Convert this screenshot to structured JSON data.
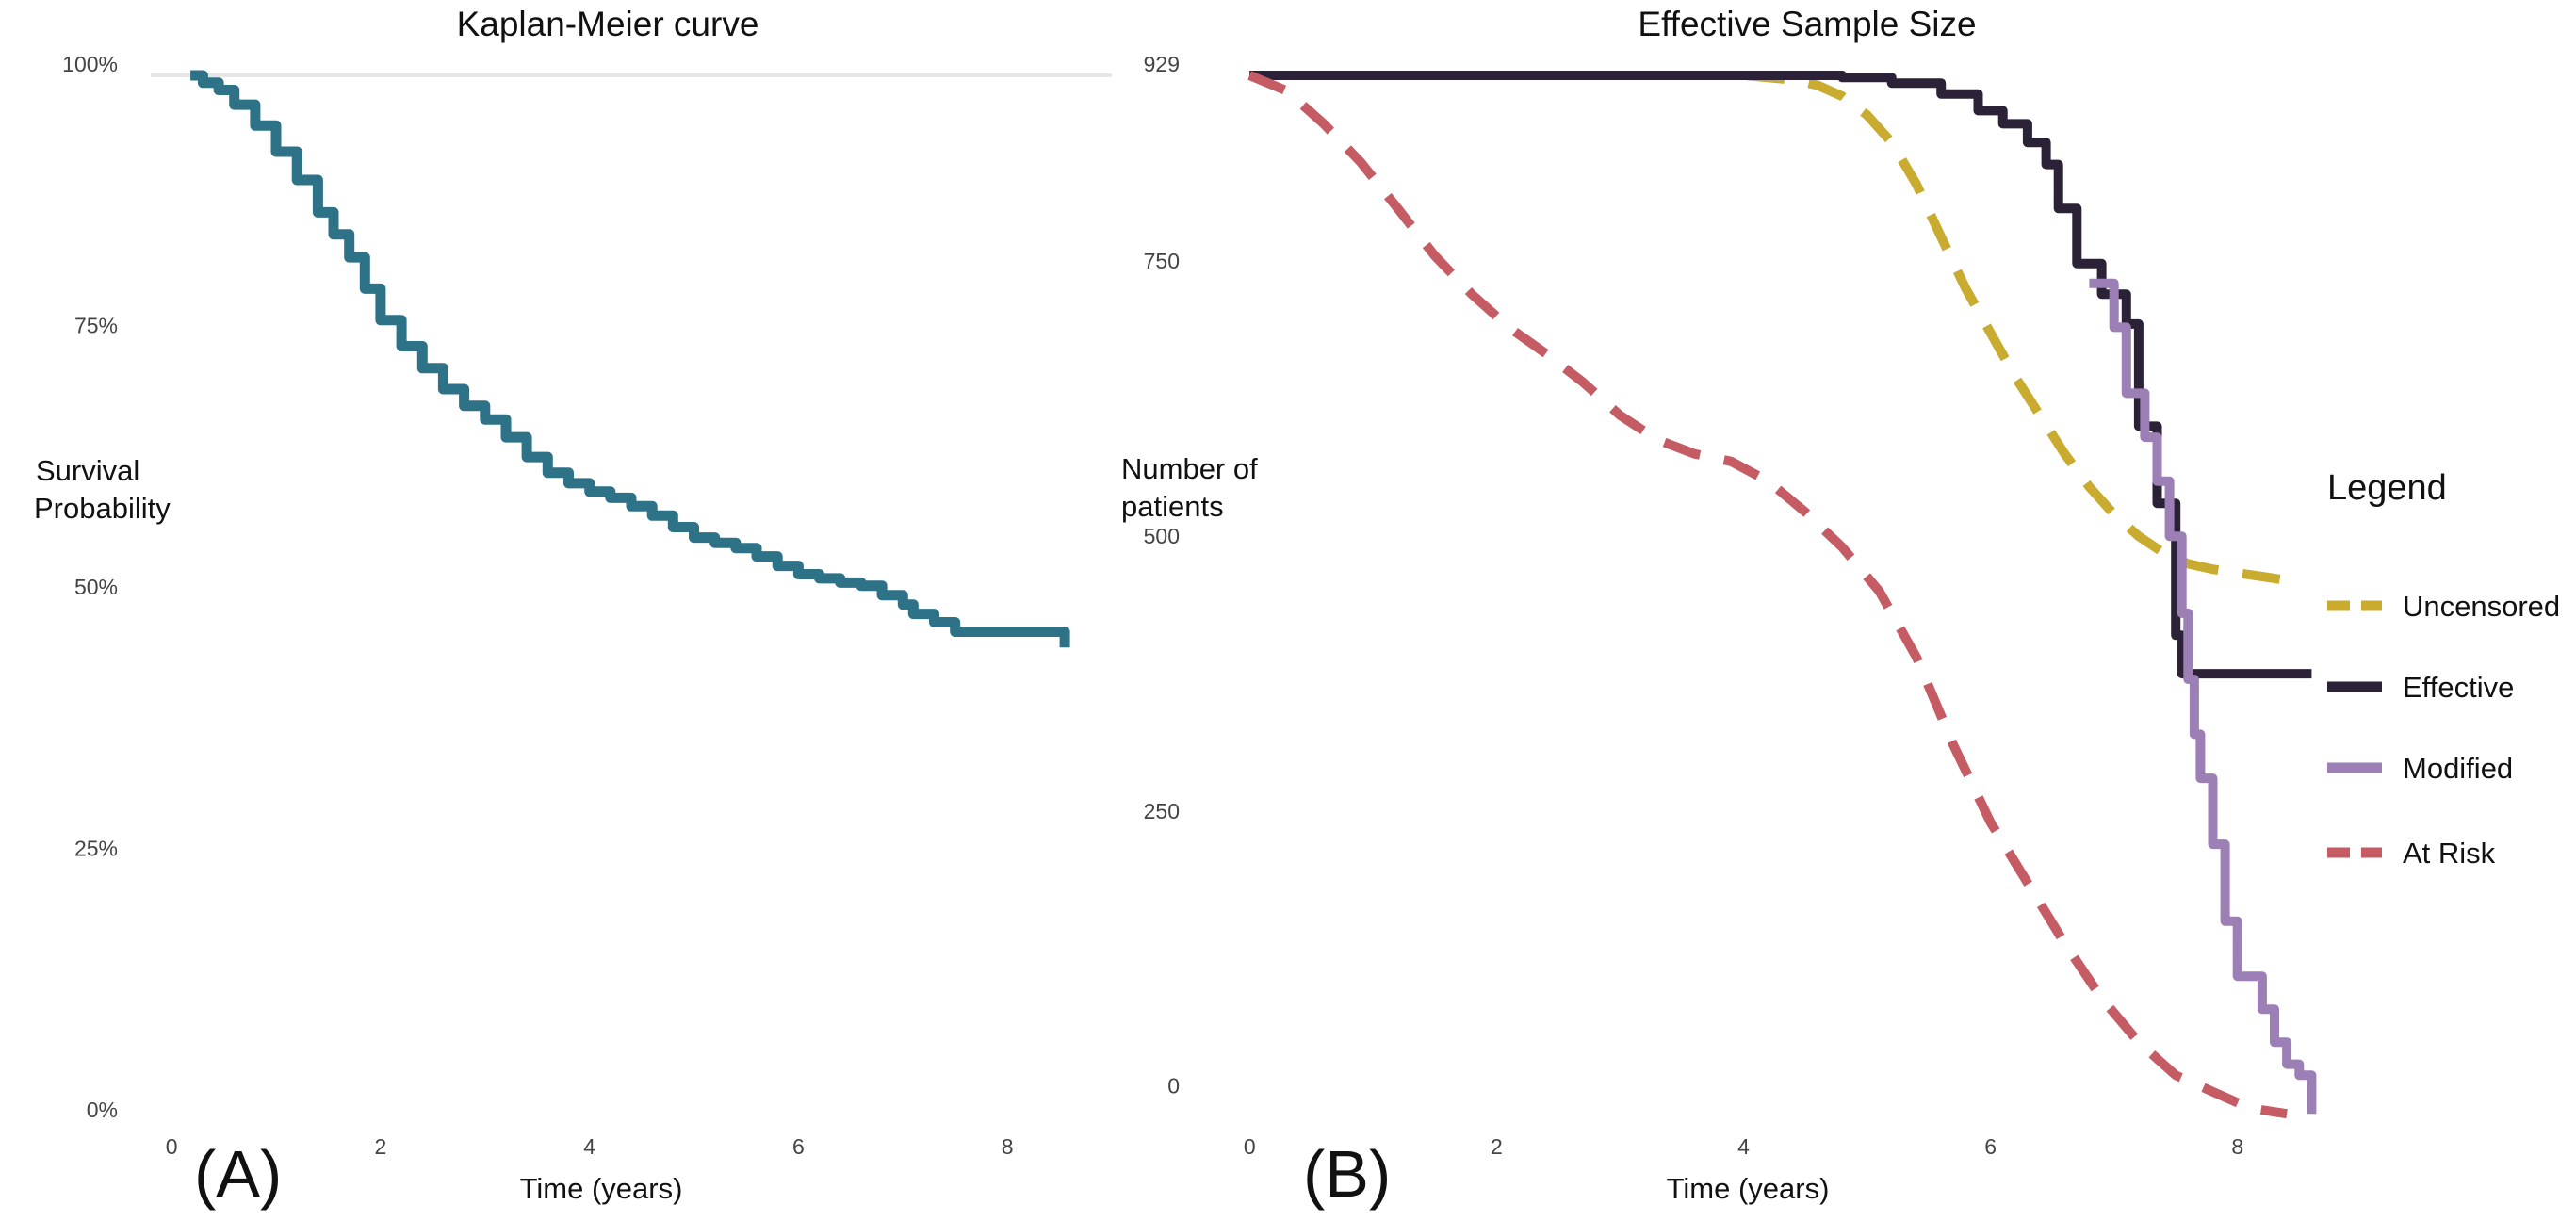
{
  "chart_data": [
    {
      "type": "line",
      "title": "Kaplan-Meier curve",
      "xlabel": "Time (years)",
      "ylabel": [
        "Survival",
        "Probability"
      ],
      "panel_label": "(A)",
      "xlim": [
        -0.2,
        9.0
      ],
      "ylim": [
        0,
        1
      ],
      "x_ticks": [
        0,
        2,
        4,
        6,
        8
      ],
      "x_tick_labels": [
        "0",
        "2",
        "4",
        "6",
        "8"
      ],
      "y_ticks": [
        0,
        0.25,
        0.5,
        0.75,
        1
      ],
      "y_tick_labels": [
        "0%",
        "25%",
        "50%",
        "75%",
        "100%"
      ],
      "grid": "horizontal-top",
      "series": [
        {
          "color": "#2e7288",
          "style": "step",
          "x": [
            0.18,
            0.3,
            0.45,
            0.6,
            0.8,
            1.0,
            1.2,
            1.4,
            1.55,
            1.7,
            1.85,
            2.0,
            2.2,
            2.4,
            2.6,
            2.8,
            3.0,
            3.2,
            3.4,
            3.6,
            3.8,
            4.0,
            4.2,
            4.4,
            4.6,
            4.8,
            5.0,
            5.2,
            5.4,
            5.6,
            5.8,
            6.0,
            6.2,
            6.4,
            6.6,
            6.8,
            7.0,
            7.1,
            7.3,
            7.5,
            8.55
          ],
          "y": [
            1.0,
            0.993,
            0.986,
            0.972,
            0.952,
            0.927,
            0.9,
            0.869,
            0.848,
            0.826,
            0.796,
            0.766,
            0.741,
            0.72,
            0.7,
            0.684,
            0.671,
            0.654,
            0.635,
            0.62,
            0.61,
            0.602,
            0.596,
            0.588,
            0.579,
            0.568,
            0.558,
            0.553,
            0.548,
            0.54,
            0.531,
            0.523,
            0.519,
            0.515,
            0.512,
            0.503,
            0.494,
            0.485,
            0.477,
            0.468,
            0.453
          ]
        }
      ]
    },
    {
      "type": "line",
      "title": "Effective Sample Size",
      "xlabel": "Time (years)",
      "ylabel": [
        "Number of",
        "patients"
      ],
      "panel_label": "(B)",
      "xlim": [
        -0.2,
        9.2
      ],
      "ylim": [
        -20,
        929
      ],
      "x_ticks": [
        0,
        2,
        4,
        6,
        8
      ],
      "x_tick_labels": [
        "0",
        "2",
        "4",
        "6",
        "8"
      ],
      "y_ticks": [
        0,
        250,
        500,
        750,
        929
      ],
      "y_tick_labels": [
        "0",
        "250",
        "500",
        "750",
        "929"
      ],
      "legend": {
        "title": "Legend",
        "position": "right",
        "items": [
          "Uncensored",
          "Effective",
          "Modified",
          "At Risk"
        ]
      },
      "series": [
        {
          "name": "Uncensored",
          "color": "#c9ab2f",
          "style": "dashed",
          "x": [
            0,
            1,
            2,
            3,
            4,
            4.4,
            4.6,
            4.8,
            5.0,
            5.2,
            5.4,
            5.6,
            5.8,
            6.0,
            6.2,
            6.4,
            6.6,
            6.8,
            7.0,
            7.2,
            7.4,
            7.6,
            7.8,
            8.1,
            8.4
          ],
          "y": [
            929,
            929,
            929,
            929,
            929,
            925,
            920,
            910,
            893,
            868,
            830,
            782,
            735,
            695,
            655,
            620,
            585,
            555,
            530,
            510,
            495,
            485,
            480,
            475,
            470
          ]
        },
        {
          "name": "Effective",
          "color": "#2b2238",
          "style": "step",
          "x": [
            0,
            2,
            4,
            4.8,
            5.2,
            5.6,
            5.9,
            6.1,
            6.3,
            6.45,
            6.55,
            6.7,
            6.9,
            7.1,
            7.2,
            7.35,
            7.5,
            7.55,
            7.7,
            8.6
          ],
          "y": [
            929,
            929,
            929,
            927,
            922,
            912,
            897,
            885,
            868,
            848,
            808,
            758,
            730,
            703,
            610,
            540,
            420,
            385,
            385,
            385
          ]
        },
        {
          "name": "Modified",
          "color": "#9b7fb5",
          "style": "step",
          "x": [
            6.8,
            7.0,
            7.1,
            7.25,
            7.35,
            7.45,
            7.55,
            7.6,
            7.65,
            7.7,
            7.8,
            7.9,
            8.0,
            8.1,
            8.2,
            8.3,
            8.4,
            8.5,
            8.6
          ],
          "y": [
            740,
            700,
            640,
            600,
            560,
            510,
            440,
            380,
            330,
            290,
            230,
            160,
            110,
            110,
            80,
            50,
            30,
            20,
            -15
          ]
        },
        {
          "name": "At Risk",
          "color": "#c55b63",
          "style": "dashed",
          "x": [
            0,
            0.3,
            0.6,
            0.9,
            1.2,
            1.5,
            1.8,
            2.1,
            2.4,
            2.7,
            3.0,
            3.3,
            3.6,
            3.9,
            4.2,
            4.5,
            4.8,
            5.1,
            5.4,
            5.7,
            6.0,
            6.3,
            6.6,
            6.9,
            7.2,
            7.5,
            7.8,
            8.1,
            8.4
          ],
          "y": [
            929,
            915,
            885,
            850,
            808,
            765,
            730,
            700,
            676,
            650,
            620,
            598,
            585,
            578,
            560,
            532,
            500,
            460,
            400,
            320,
            250,
            195,
            140,
            90,
            50,
            20,
            5,
            -10,
            -15
          ]
        }
      ]
    }
  ]
}
